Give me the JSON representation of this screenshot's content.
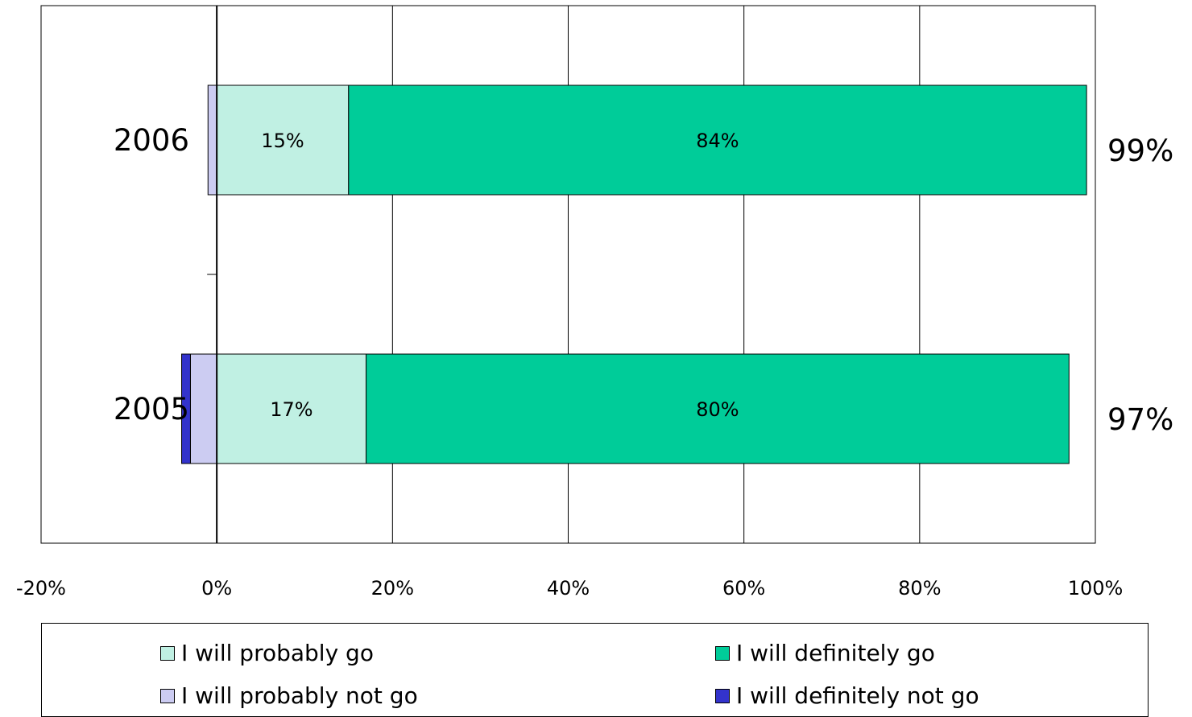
{
  "chart_data": {
    "type": "bar",
    "orientation": "horizontal",
    "stacked": true,
    "categories": [
      "2006",
      "2005"
    ],
    "series": [
      {
        "name": "I will probably go",
        "values": [
          15,
          17
        ],
        "color": "#c0f0e3",
        "labels": [
          "15%",
          "17%"
        ]
      },
      {
        "name": "I will definitely go",
        "values": [
          84,
          80
        ],
        "color": "#00cc99",
        "labels": [
          "84%",
          "80%"
        ]
      },
      {
        "name": "I will probably not go",
        "values": [
          -1,
          -3
        ],
        "color": "#ccccf2",
        "labels": [
          "",
          ""
        ]
      },
      {
        "name": "I will definitely not go",
        "values": [
          0,
          -1
        ],
        "color": "#3333cc",
        "labels": [
          "",
          ""
        ]
      }
    ],
    "totals": [
      "99%",
      "97%"
    ],
    "xlim": [
      -20,
      100
    ],
    "x_ticks": [
      "-20%",
      "0%",
      "20%",
      "40%",
      "60%",
      "80%",
      "100%"
    ],
    "grid": true,
    "legend_position": "bottom"
  }
}
